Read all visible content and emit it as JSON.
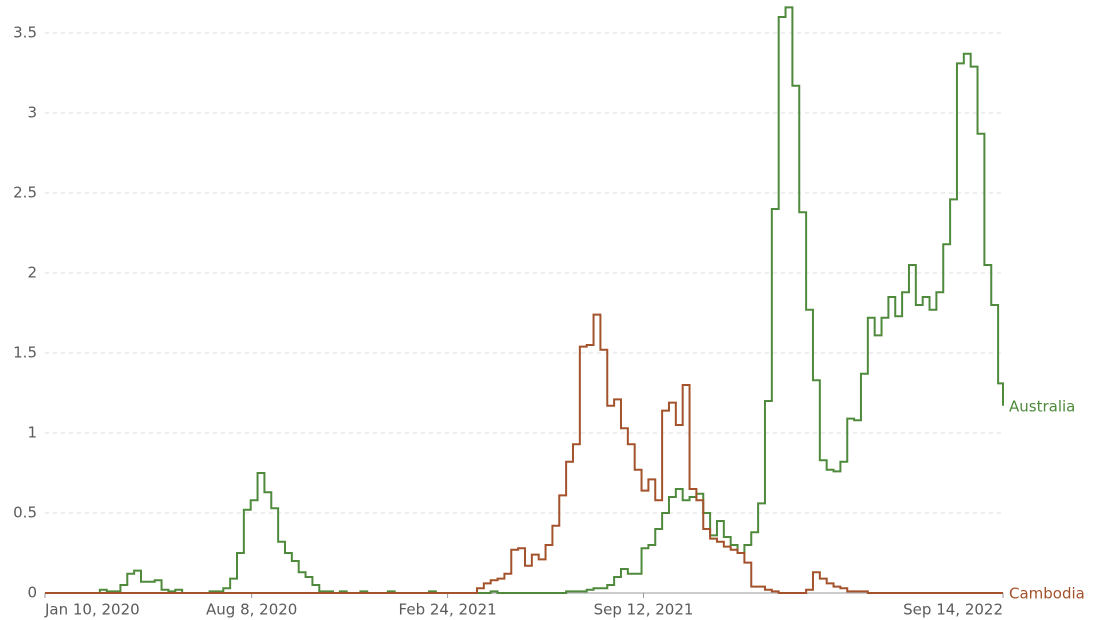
{
  "chart_data": {
    "type": "line",
    "step": true,
    "x": [
      "2020-01-10",
      "2020-01-17",
      "2020-01-24",
      "2020-01-31",
      "2020-02-07",
      "2020-02-14",
      "2020-02-21",
      "2020-02-28",
      "2020-03-06",
      "2020-03-13",
      "2020-03-20",
      "2020-03-27",
      "2020-04-03",
      "2020-04-10",
      "2020-04-17",
      "2020-04-24",
      "2020-05-01",
      "2020-05-08",
      "2020-05-15",
      "2020-05-22",
      "2020-05-29",
      "2020-06-05",
      "2020-06-12",
      "2020-06-19",
      "2020-06-26",
      "2020-07-03",
      "2020-07-10",
      "2020-07-17",
      "2020-07-24",
      "2020-07-31",
      "2020-08-07",
      "2020-08-14",
      "2020-08-21",
      "2020-08-28",
      "2020-09-04",
      "2020-09-11",
      "2020-09-18",
      "2020-09-25",
      "2020-10-02",
      "2020-10-09",
      "2020-10-16",
      "2020-10-23",
      "2020-10-30",
      "2020-11-06",
      "2020-11-13",
      "2020-11-20",
      "2020-11-27",
      "2020-12-04",
      "2020-12-11",
      "2020-12-18",
      "2020-12-25",
      "2021-01-01",
      "2021-01-08",
      "2021-01-15",
      "2021-01-22",
      "2021-01-29",
      "2021-02-05",
      "2021-02-12",
      "2021-02-19",
      "2021-02-26",
      "2021-03-05",
      "2021-03-12",
      "2021-03-19",
      "2021-03-26",
      "2021-04-02",
      "2021-04-09",
      "2021-04-16",
      "2021-04-23",
      "2021-04-30",
      "2021-05-07",
      "2021-05-14",
      "2021-05-21",
      "2021-05-28",
      "2021-06-04",
      "2021-06-11",
      "2021-06-18",
      "2021-06-25",
      "2021-07-02",
      "2021-07-09",
      "2021-07-16",
      "2021-07-23",
      "2021-07-30",
      "2021-08-06",
      "2021-08-13",
      "2021-08-20",
      "2021-08-27",
      "2021-09-03",
      "2021-09-10",
      "2021-09-17",
      "2021-09-24",
      "2021-10-01",
      "2021-10-08",
      "2021-10-15",
      "2021-10-22",
      "2021-10-29",
      "2021-11-05",
      "2021-11-12",
      "2021-11-19",
      "2021-11-26",
      "2021-12-03",
      "2021-12-10",
      "2021-12-17",
      "2021-12-24",
      "2021-12-31",
      "2022-01-07",
      "2022-01-14",
      "2022-01-21",
      "2022-01-28",
      "2022-02-04",
      "2022-02-11",
      "2022-02-18",
      "2022-02-25",
      "2022-03-04",
      "2022-03-11",
      "2022-03-18",
      "2022-03-25",
      "2022-04-01",
      "2022-04-08",
      "2022-04-15",
      "2022-04-22",
      "2022-04-29",
      "2022-05-06",
      "2022-05-13",
      "2022-05-20",
      "2022-05-27",
      "2022-06-03",
      "2022-06-10",
      "2022-06-17",
      "2022-06-24",
      "2022-07-01",
      "2022-07-08",
      "2022-07-15",
      "2022-07-22",
      "2022-07-29",
      "2022-08-05",
      "2022-08-12",
      "2022-08-19",
      "2022-08-26",
      "2022-09-02",
      "2022-09-09",
      "2022-09-14"
    ],
    "series": [
      {
        "name": "Australia",
        "color": "#4f8a3c",
        "values": [
          0,
          0,
          0,
          0,
          0,
          0,
          0,
          0,
          0.02,
          0.01,
          0.01,
          0.05,
          0.12,
          0.14,
          0.07,
          0.07,
          0.08,
          0.02,
          0.01,
          0.02,
          0,
          0,
          0,
          0,
          0.01,
          0.01,
          0.03,
          0.09,
          0.25,
          0.52,
          0.58,
          0.75,
          0.63,
          0.53,
          0.32,
          0.25,
          0.2,
          0.13,
          0.1,
          0.05,
          0.01,
          0.01,
          0,
          0.01,
          0,
          0,
          0.01,
          0,
          0,
          0,
          0.01,
          0,
          0,
          0,
          0,
          0,
          0.01,
          0,
          0,
          0,
          0,
          0,
          0,
          0,
          0,
          0.01,
          0,
          0,
          0,
          0,
          0,
          0,
          0,
          0,
          0,
          0,
          0.01,
          0.01,
          0.01,
          0.02,
          0.03,
          0.03,
          0.05,
          0.1,
          0.15,
          0.12,
          0.12,
          0.28,
          0.3,
          0.4,
          0.5,
          0.6,
          0.65,
          0.58,
          0.6,
          0.62,
          0.5,
          0.36,
          0.45,
          0.35,
          0.3,
          0.25,
          0.3,
          0.38,
          0.56,
          1.2,
          2.4,
          3.6,
          3.66,
          3.17,
          2.38,
          1.77,
          1.33,
          0.83,
          0.77,
          0.76,
          0.82,
          1.09,
          1.08,
          1.37,
          1.72,
          1.61,
          1.72,
          1.85,
          1.73,
          1.88,
          2.05,
          1.8,
          1.85,
          1.77,
          1.88,
          2.18,
          2.46,
          3.31,
          3.37,
          3.29,
          2.87,
          2.05,
          1.8,
          1.31,
          1.17
        ]
      },
      {
        "name": "Cambodia",
        "color": "#a3522b",
        "values": [
          0,
          0,
          0,
          0,
          0,
          0,
          0,
          0,
          0,
          0,
          0,
          0,
          0,
          0,
          0,
          0,
          0,
          0,
          0,
          0,
          0,
          0,
          0,
          0,
          0,
          0,
          0,
          0,
          0,
          0,
          0,
          0,
          0,
          0,
          0,
          0,
          0,
          0,
          0,
          0,
          0,
          0,
          0,
          0,
          0,
          0,
          0,
          0,
          0,
          0,
          0,
          0,
          0,
          0,
          0,
          0,
          0,
          0,
          0,
          0,
          0,
          0,
          0,
          0.03,
          0.06,
          0.08,
          0.09,
          0.12,
          0.27,
          0.28,
          0.17,
          0.24,
          0.21,
          0.3,
          0.42,
          0.61,
          0.82,
          0.93,
          1.54,
          1.55,
          1.74,
          1.52,
          1.17,
          1.21,
          1.03,
          0.93,
          0.77,
          0.64,
          0.71,
          0.58,
          1.14,
          1.19,
          1.05,
          1.3,
          0.65,
          0.58,
          0.4,
          0.34,
          0.32,
          0.29,
          0.27,
          0.25,
          0.19,
          0.04,
          0.04,
          0.02,
          0.01,
          0,
          0,
          0,
          0,
          0.02,
          0.13,
          0.09,
          0.06,
          0.04,
          0.03,
          0.01,
          0.01,
          0.01,
          0,
          0,
          0,
          0,
          0,
          0,
          0,
          0,
          0,
          0,
          0,
          0,
          0,
          0,
          0,
          0,
          0,
          0,
          0,
          0,
          0
        ]
      }
    ],
    "xlim": [
      "2020-01-10",
      "2022-09-14"
    ],
    "xticks": [
      {
        "value": "2020-01-10",
        "label": "Jan 10, 2020"
      },
      {
        "value": "2020-08-08",
        "label": "Aug 8, 2020"
      },
      {
        "value": "2021-02-24",
        "label": "Feb 24, 2021"
      },
      {
        "value": "2021-09-12",
        "label": "Sep 12, 2021"
      },
      {
        "value": "2022-09-14",
        "label": "Sep 14, 2022"
      }
    ],
    "ylim": [
      0,
      3.66
    ],
    "yticks": [
      0,
      0.5,
      1,
      1.5,
      2,
      2.5,
      3,
      3.5
    ],
    "grid": true
  }
}
